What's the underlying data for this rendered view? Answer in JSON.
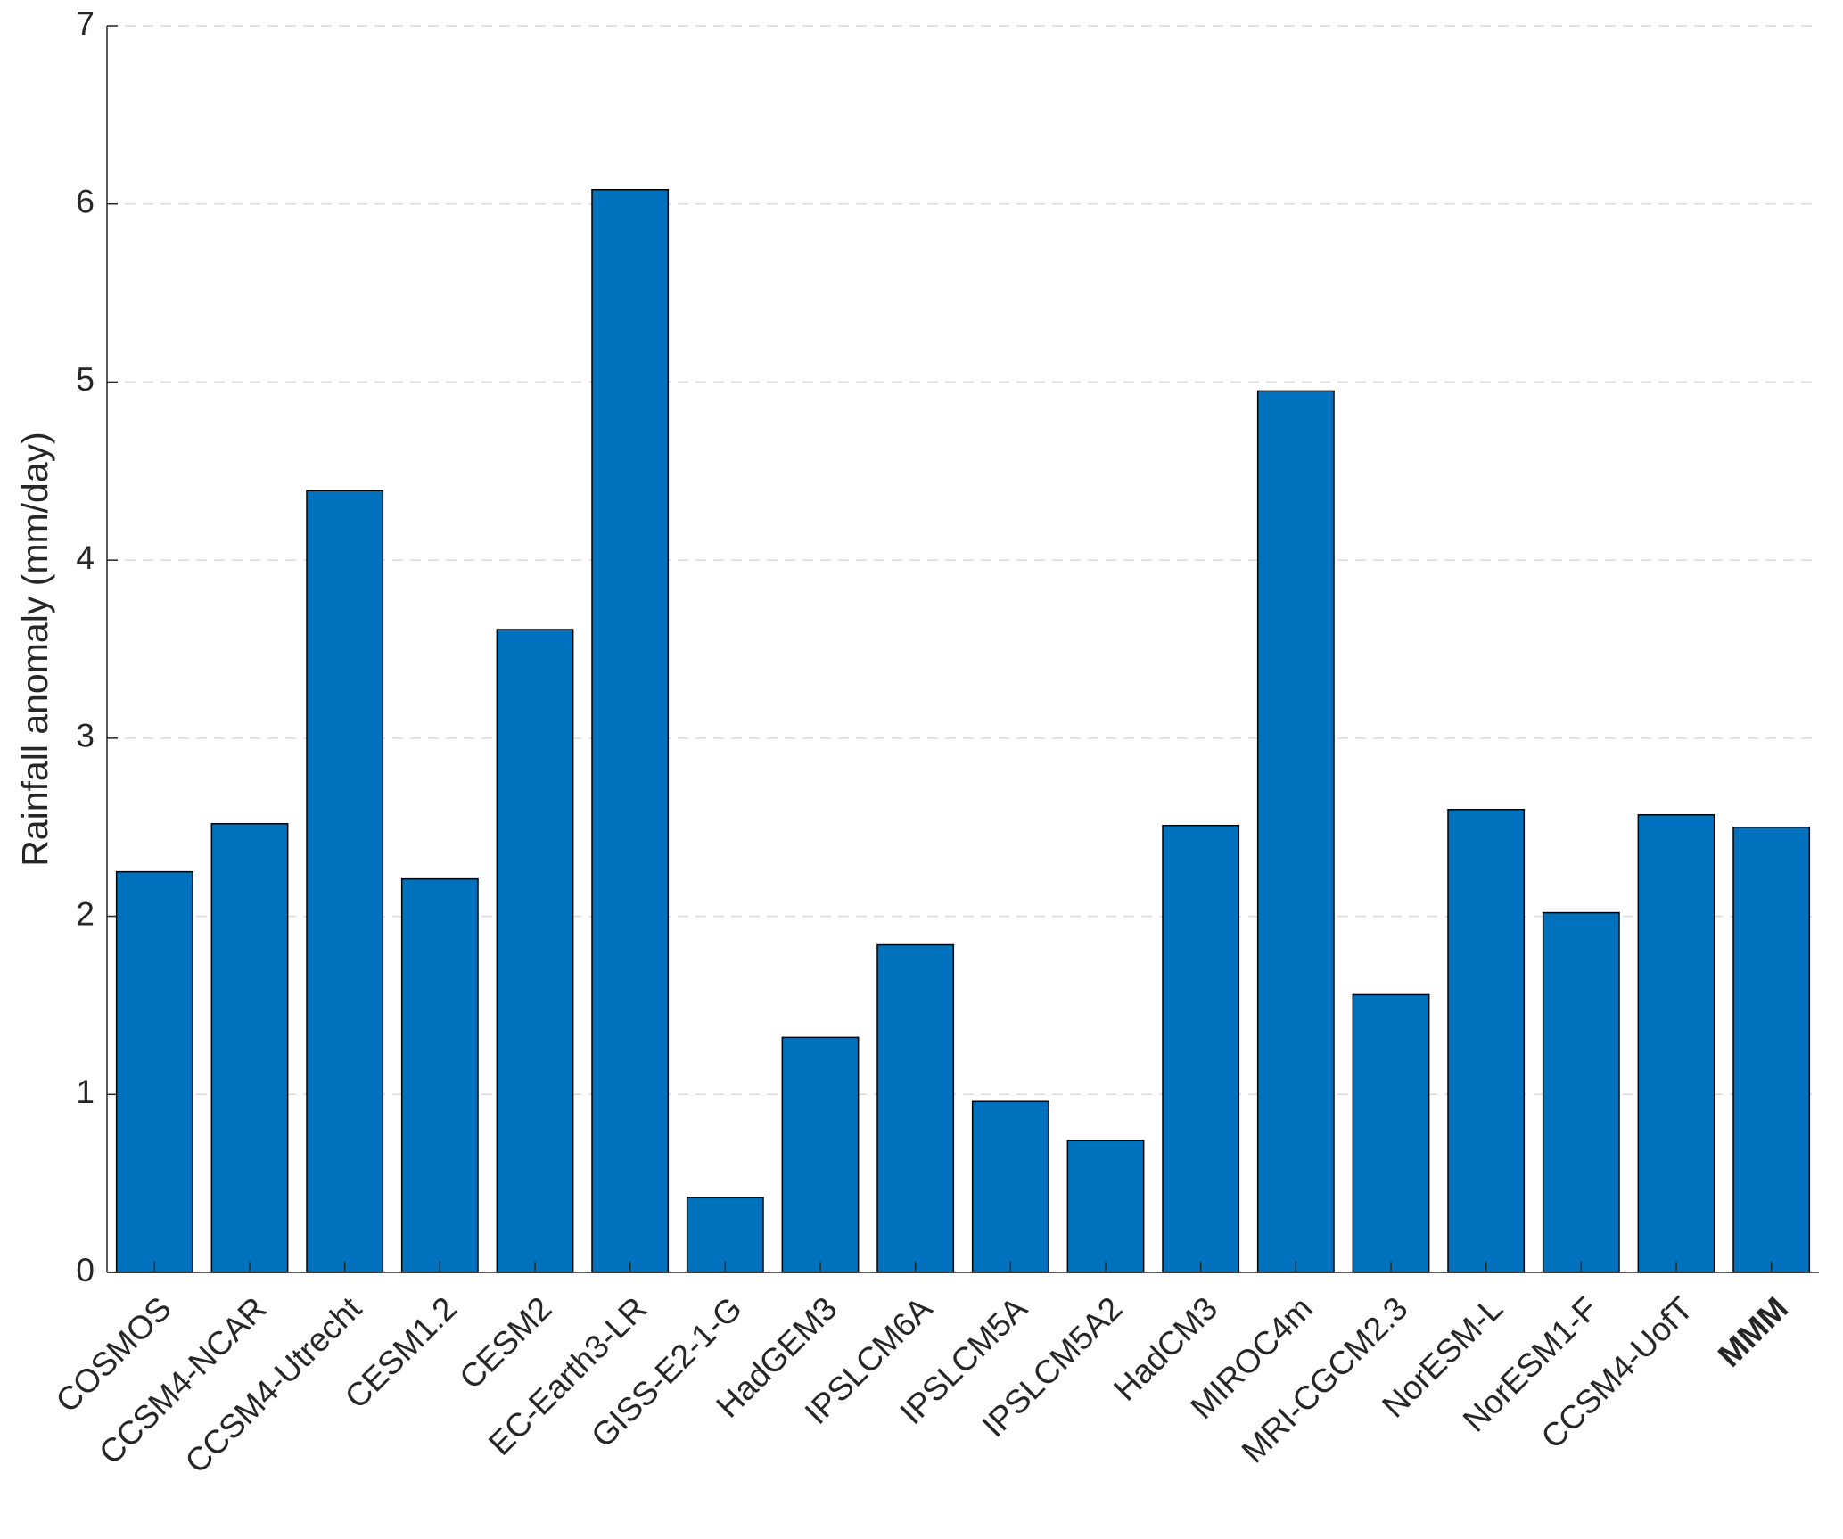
{
  "chart_data": {
    "type": "bar",
    "y_label": "Rainfall anomaly (mm/day)",
    "categories": [
      "COSMOS",
      "CCSM4-NCAR",
      "CCSM4-Utrecht",
      "CESM1.2",
      "CESM2",
      "EC-Earth3-LR",
      "GISS-E2-1-G",
      "HadGEM3",
      "IPSLCM6A",
      "IPSLCM5A",
      "IPSLCM5A2",
      "HadCM3",
      "MIROC4m",
      "MRI-CGCM2.3",
      "NorESM-L",
      "NorESM1-F",
      "CCSM4-UofT",
      "MMM"
    ],
    "values": [
      2.25,
      2.52,
      4.39,
      2.21,
      3.61,
      6.08,
      0.42,
      1.32,
      1.84,
      0.96,
      0.74,
      2.51,
      4.95,
      1.56,
      2.6,
      2.02,
      2.57,
      2.5
    ],
    "color": "#0072bd",
    "ylim": [
      0,
      7
    ],
    "yticks": [
      0,
      1,
      2,
      3,
      4,
      5,
      6,
      7
    ],
    "grid": true
  }
}
